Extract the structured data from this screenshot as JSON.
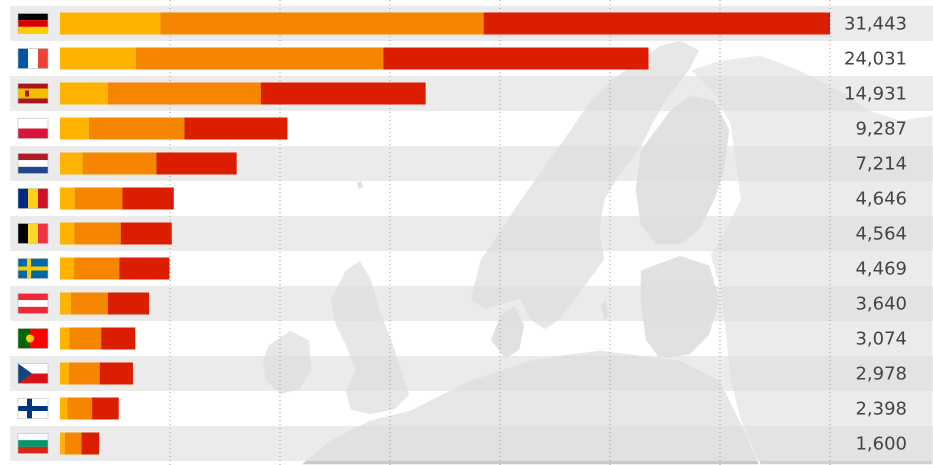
{
  "chart_data": {
    "type": "bar",
    "orientation": "horizontal",
    "stacked": true,
    "categories": [
      "Germany",
      "France",
      "Spain",
      "Poland",
      "Netherlands",
      "Romania",
      "Belgium",
      "Sweden",
      "Austria",
      "Portugal",
      "Czechia",
      "Finland",
      "Bulgaria"
    ],
    "flag_icons": [
      "germany-flag-icon",
      "france-flag-icon",
      "spain-flag-icon",
      "poland-flag-icon",
      "netherlands-flag-icon",
      "romania-flag-icon",
      "belgium-flag-icon",
      "sweden-flag-icon",
      "austria-flag-icon",
      "portugal-flag-icon",
      "czechia-flag-icon",
      "finland-flag-icon",
      "bulgaria-flag-icon"
    ],
    "totals": [
      31443,
      24031,
      14931,
      9287,
      7214,
      4646,
      4564,
      4469,
      3640,
      3074,
      2978,
      2398,
      1600
    ],
    "total_labels": [
      "31,443",
      "24,031",
      "14,931",
      "9,287",
      "7,214",
      "4,646",
      "4,564",
      "4,469",
      "3,640",
      "3,074",
      "2,978",
      "2,398",
      "1,600"
    ],
    "series": [
      {
        "color": "#FFB300",
        "values": [
          4100,
          3100,
          1950,
          1180,
          920,
          600,
          580,
          560,
          450,
          380,
          370,
          300,
          200
        ]
      },
      {
        "color": "#F68500",
        "values": [
          13200,
          10100,
          6250,
          3900,
          3020,
          1950,
          1900,
          1860,
          1500,
          1300,
          1250,
          1010,
          680
        ]
      },
      {
        "color": "#DB1D00",
        "values": [
          14143,
          10831,
          6731,
          4207,
          3274,
          2096,
          2084,
          2049,
          1690,
          1394,
          1358,
          1088,
          720
        ]
      }
    ],
    "xlim": [
      0,
      31443
    ],
    "grid": true,
    "title": "",
    "xlabel": "",
    "ylabel": ""
  }
}
